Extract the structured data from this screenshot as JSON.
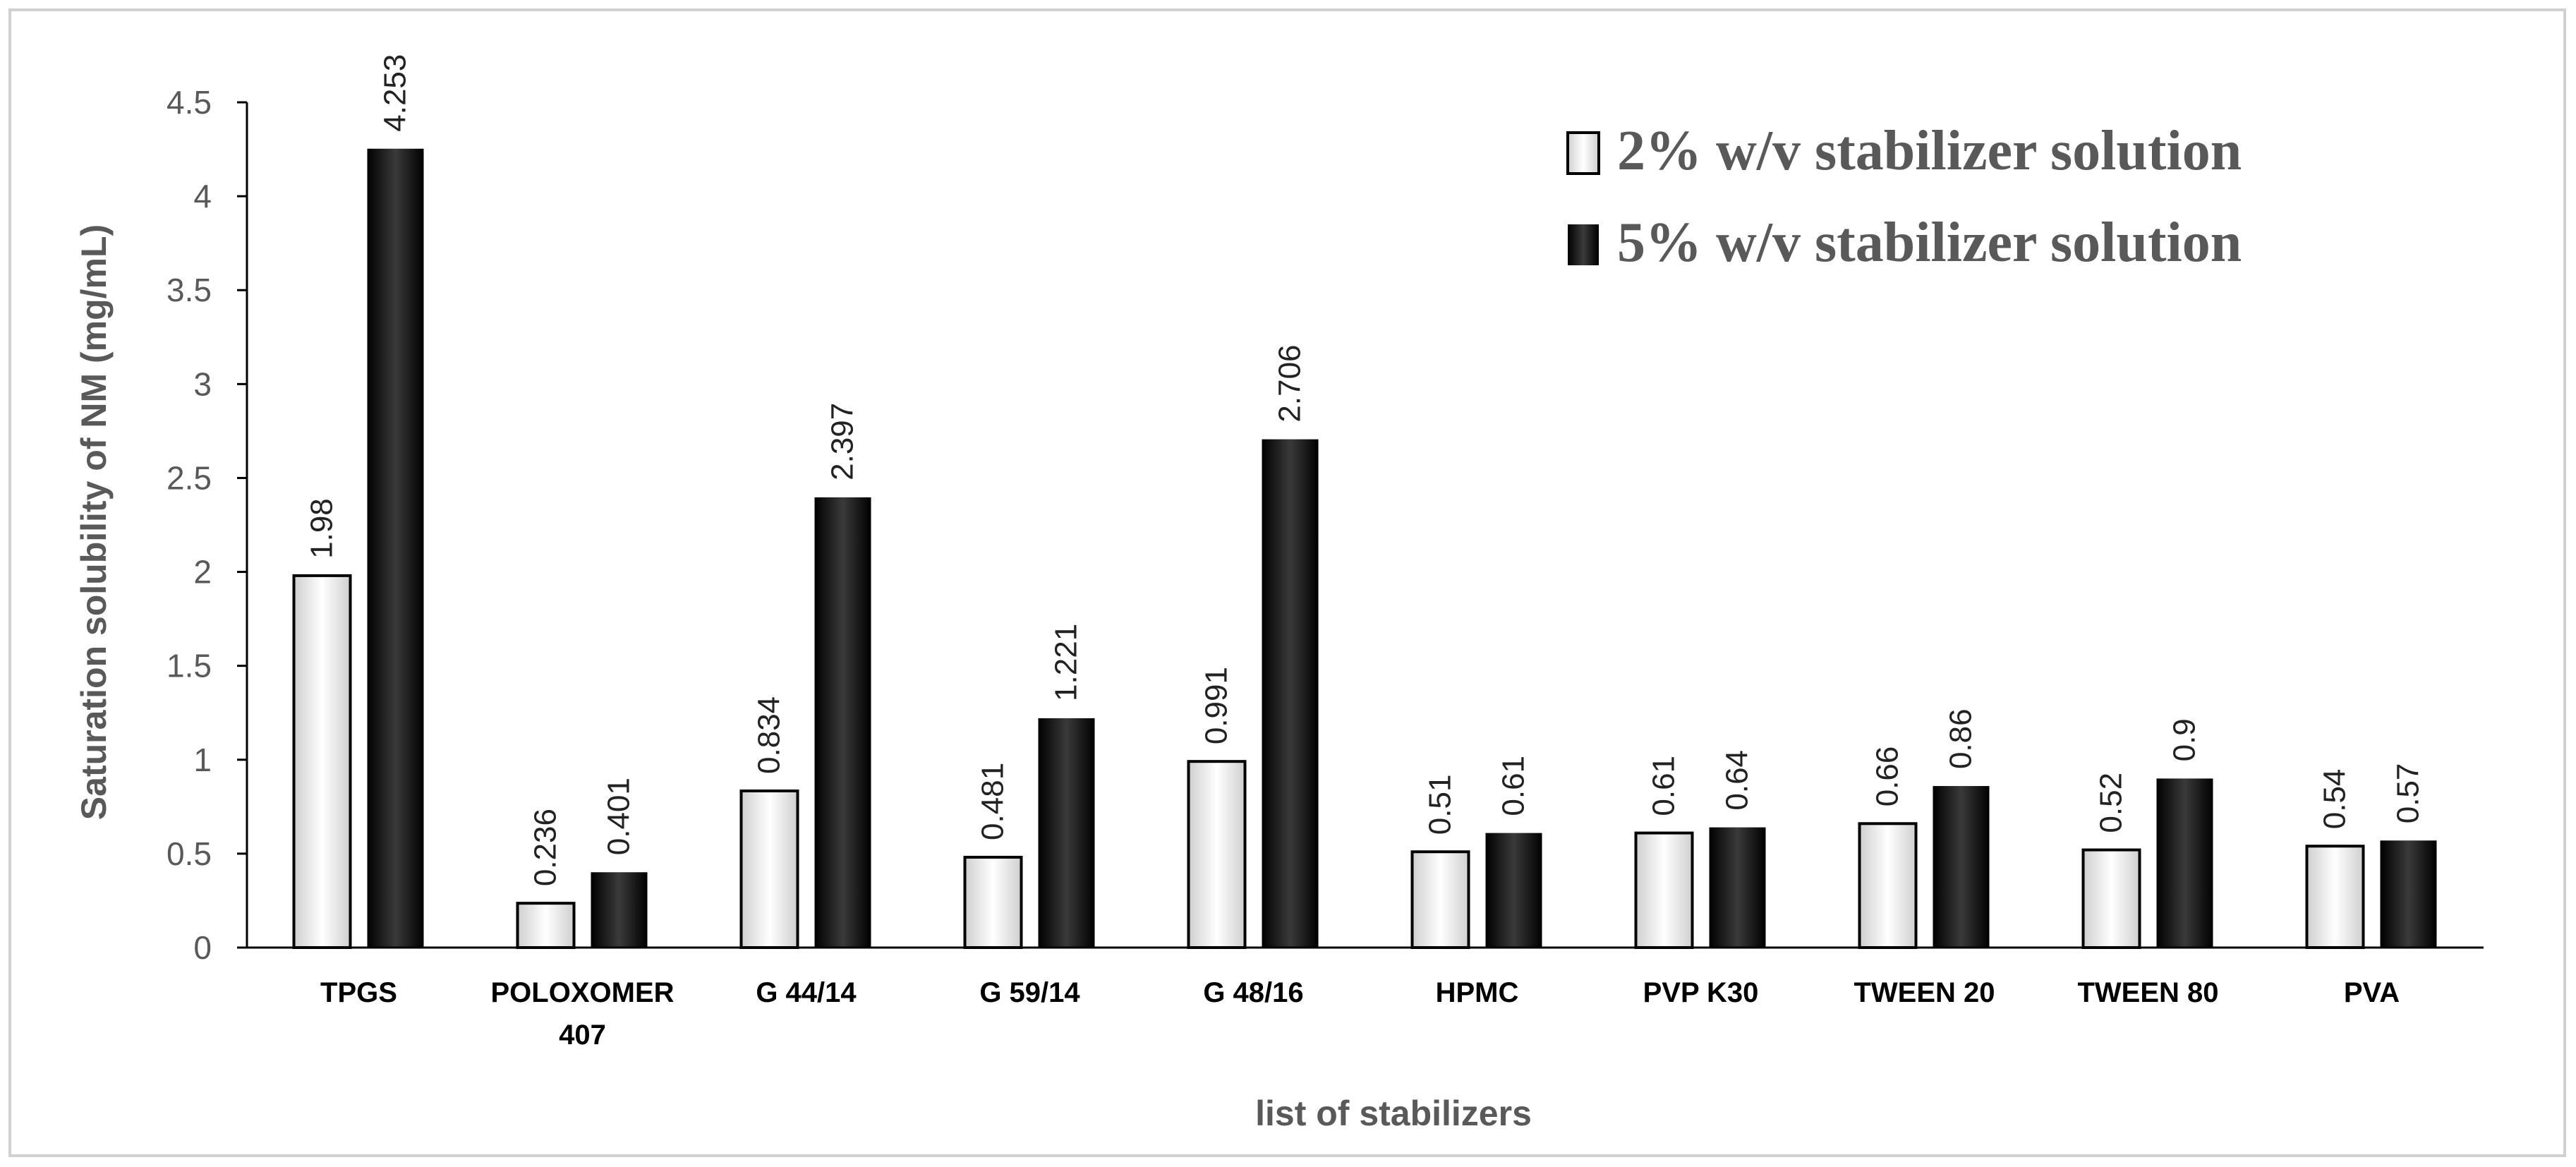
{
  "chart_data": {
    "type": "bar",
    "title": "",
    "xlabel": "list of stabilizers",
    "ylabel": "Saturation solubility of NM (mg/mL)",
    "ylim": [
      0,
      4.5
    ],
    "yticks": [
      "0",
      "0.5",
      "1",
      "1.5",
      "2",
      "2.5",
      "3",
      "3.5",
      "4",
      "4.5"
    ],
    "grid": false,
    "legend_position": "top-right",
    "categories": [
      [
        "TPGS"
      ],
      [
        "POLOXOMER",
        "407"
      ],
      [
        "G 44/14"
      ],
      [
        "G 59/14"
      ],
      [
        "G 48/16"
      ],
      [
        "HPMC"
      ],
      [
        "PVP K30"
      ],
      [
        "TWEEN 20"
      ],
      [
        "TWEEN 80"
      ],
      [
        "PVA"
      ]
    ],
    "series": [
      {
        "name": "2% w/v stabilizer solution",
        "values": [
          1.98,
          0.236,
          0.834,
          0.481,
          0.991,
          0.51,
          0.61,
          0.66,
          0.52,
          0.54
        ],
        "labels": [
          "1.98",
          "0.236",
          "0.834",
          "0.481",
          "0.991",
          "0.51",
          "0.61",
          "0.66",
          "0.52",
          "0.54"
        ]
      },
      {
        "name": "5% w/v stabilizer solution",
        "values": [
          4.253,
          0.401,
          2.397,
          1.221,
          2.706,
          0.61,
          0.64,
          0.86,
          0.9,
          0.57
        ],
        "labels": [
          "4.253",
          "0.401",
          "2.397",
          "1.221",
          "2.706",
          "0.61",
          "0.64",
          "0.86",
          "0.9",
          "0.57"
        ]
      }
    ]
  }
}
